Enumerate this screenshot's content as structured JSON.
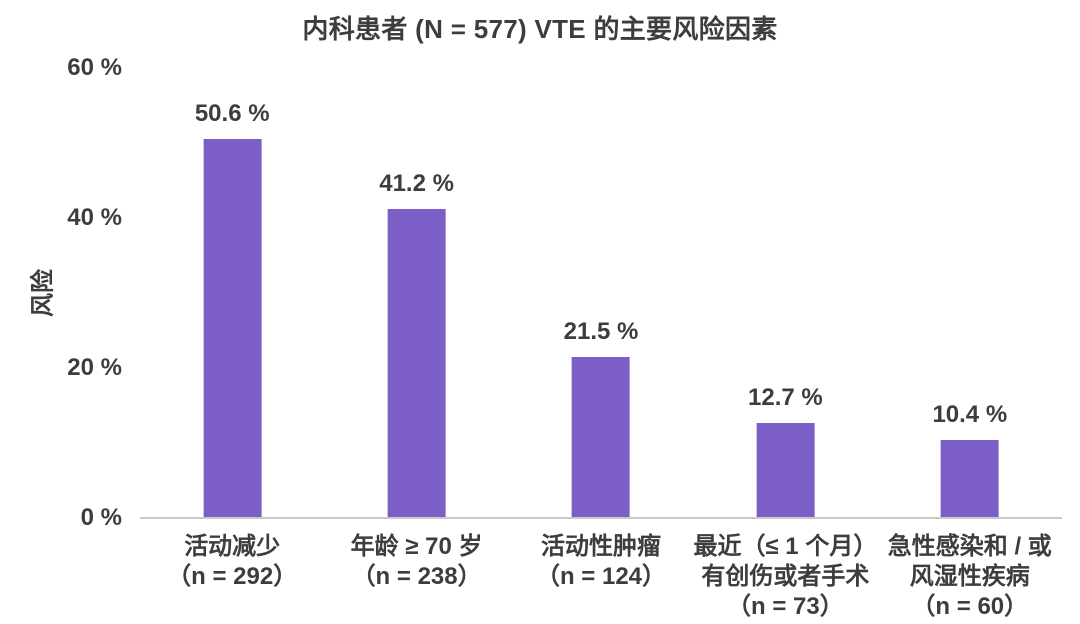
{
  "colors": {
    "bar": "#7b5ec6",
    "text": "#3d3d3d",
    "axis_line": "#c9c9c9",
    "background": "#ffffff"
  },
  "chart_data": {
    "type": "bar",
    "title": "内科患者 (N = 577) VTE 的主要风险因素",
    "xlabel": "",
    "ylabel": "风险",
    "ylim": [
      0,
      60
    ],
    "grid": false,
    "legend": null,
    "yticks": [
      {
        "value": 0,
        "label": "0 %"
      },
      {
        "value": 20,
        "label": "20 %"
      },
      {
        "value": 40,
        "label": "40 %"
      },
      {
        "value": 60,
        "label": "60 %"
      }
    ],
    "categories": [
      [
        "活动减少",
        "（n = 292）"
      ],
      [
        "年龄 ≥ 70 岁",
        "（n = 238）"
      ],
      [
        "活动性肿瘤",
        "（n = 124）"
      ],
      [
        "最近（≤ 1 个月）",
        "有创伤或者手术",
        "（n = 73）"
      ],
      [
        "急性感染和 / 或",
        "风湿性疾病",
        "（n = 60）"
      ]
    ],
    "values": [
      50.6,
      41.2,
      21.5,
      12.7,
      10.4
    ],
    "value_labels": [
      "50.6 %",
      "41.2 %",
      "21.5 %",
      "12.7 %",
      "10.4 %"
    ]
  }
}
